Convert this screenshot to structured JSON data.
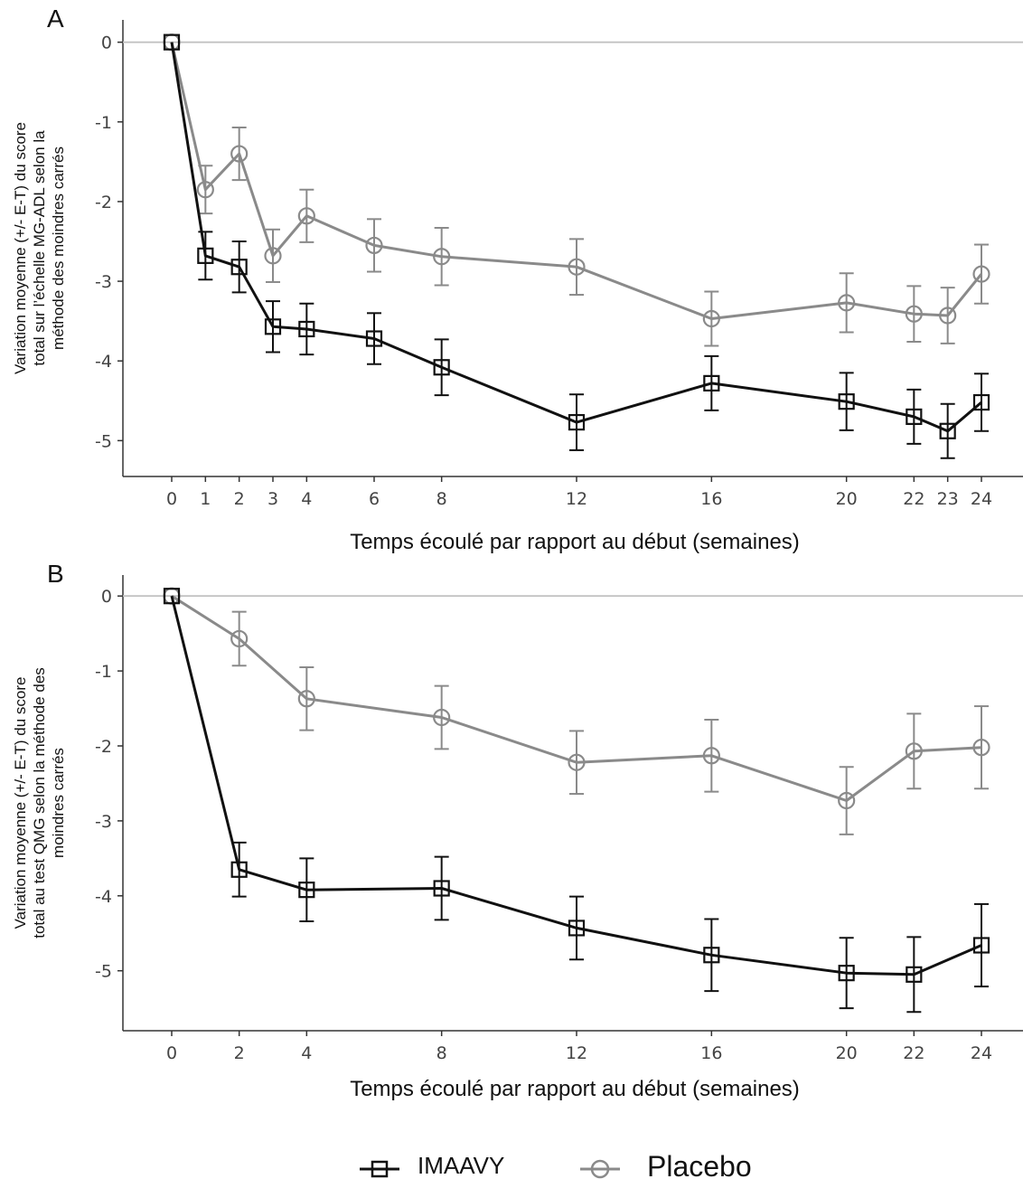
{
  "chart_data": [
    {
      "type": "line",
      "panel": "A",
      "xlabel": "Temps écoulé par rapport au début (semaines)",
      "ylabel_lines": [
        "Variation moyenne (+/- E-T) du score",
        "total sur l’échelle MG-ADL selon la",
        "méthode des moindres carrés"
      ],
      "x_ticks": [
        0,
        1,
        2,
        3,
        4,
        6,
        8,
        12,
        16,
        20,
        22,
        23,
        24
      ],
      "y_ticks": [
        0,
        -1,
        -2,
        -3,
        -4,
        -5
      ],
      "y_tick_labels": [
        "0",
        "-1",
        "-2",
        "-3",
        "-4",
        "-5"
      ],
      "ylim": [
        -5.45,
        0.28
      ],
      "grid": false,
      "series": [
        {
          "name": "IMAAVY",
          "color": "#111111",
          "marker": "square",
          "x": [
            0,
            1,
            2,
            3,
            4,
            6,
            8,
            12,
            16,
            20,
            22,
            23,
            24
          ],
          "y": [
            0,
            -2.68,
            -2.82,
            -3.57,
            -3.6,
            -3.72,
            -4.08,
            -4.77,
            -4.28,
            -4.51,
            -4.7,
            -4.88,
            -4.52
          ],
          "err": [
            0,
            0.3,
            0.32,
            0.32,
            0.32,
            0.32,
            0.35,
            0.35,
            0.34,
            0.36,
            0.34,
            0.34,
            0.36
          ]
        },
        {
          "name": "Placebo",
          "color": "#8a8a8a",
          "marker": "circle",
          "x": [
            0,
            1,
            2,
            3,
            4,
            6,
            8,
            12,
            16,
            20,
            22,
            23,
            24
          ],
          "y": [
            0,
            -1.85,
            -1.4,
            -2.68,
            -2.18,
            -2.55,
            -2.69,
            -2.82,
            -3.47,
            -3.27,
            -3.41,
            -3.43,
            -2.91
          ],
          "err": [
            0,
            0.3,
            0.33,
            0.33,
            0.33,
            0.33,
            0.36,
            0.35,
            0.34,
            0.37,
            0.35,
            0.35,
            0.37
          ]
        }
      ]
    },
    {
      "type": "line",
      "panel": "B",
      "xlabel": "Temps écoulé par rapport au début (semaines)",
      "ylabel_lines": [
        "Variation moyenne (+/- E-T) du score",
        "total au test QMG selon la méthode des",
        "moindres carrés"
      ],
      "x_ticks": [
        0,
        2,
        4,
        8,
        12,
        16,
        20,
        22,
        24
      ],
      "y_ticks": [
        0,
        -1,
        -2,
        -3,
        -4,
        -5
      ],
      "y_tick_labels": [
        "0",
        "-1",
        "-2",
        "-3",
        "-4",
        "-5"
      ],
      "ylim": [
        -5.8,
        0.28
      ],
      "grid": false,
      "series": [
        {
          "name": "IMAAVY",
          "color": "#111111",
          "marker": "square",
          "x": [
            0,
            2,
            4,
            8,
            12,
            16,
            20,
            22,
            24
          ],
          "y": [
            0,
            -3.65,
            -3.92,
            -3.9,
            -4.43,
            -4.79,
            -5.03,
            -5.05,
            -4.66
          ],
          "err": [
            0,
            0.36,
            0.42,
            0.42,
            0.42,
            0.48,
            0.47,
            0.5,
            0.55
          ]
        },
        {
          "name": "Placebo",
          "color": "#8a8a8a",
          "marker": "circle",
          "x": [
            0,
            2,
            4,
            8,
            12,
            16,
            20,
            22,
            24
          ],
          "y": [
            0,
            -0.57,
            -1.37,
            -1.62,
            -2.22,
            -2.13,
            -2.73,
            -2.07,
            -2.02
          ],
          "err": [
            0,
            0.36,
            0.42,
            0.42,
            0.42,
            0.48,
            0.45,
            0.5,
            0.55
          ]
        }
      ]
    }
  ],
  "legend": {
    "position": "bottom",
    "items": [
      {
        "label": "IMAAVY",
        "color": "#111111",
        "marker": "square",
        "font_size": "large"
      },
      {
        "label": "Placebo",
        "color": "#8a8a8a",
        "marker": "circle",
        "font_size": "xlarge"
      }
    ]
  }
}
